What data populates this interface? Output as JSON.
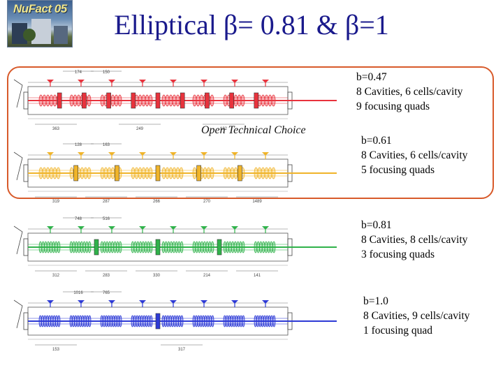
{
  "logo": {
    "text": "NuFact 05"
  },
  "title": "Elliptical β= 0.81 & β=1",
  "open_choice": "Open Technical Choice",
  "colors": {
    "title": "#1a1a8c",
    "frame": "#d85a2a",
    "red": "#e8323c",
    "yellow": "#f0b429",
    "green": "#2fb24a",
    "blue": "#2d3ad6"
  },
  "sections": [
    {
      "beta": "b=0.47",
      "cavities": "8 Cavities, 6 cells/cavity",
      "quads": "9 focusing quads",
      "color": "red",
      "dims_top": [
        "174",
        "150"
      ],
      "dims_bottom": [
        "363",
        "249",
        "182"
      ]
    },
    {
      "beta": "b=0.61",
      "cavities": "8 Cavities, 6 cells/cavity",
      "quads": "5 focusing quads",
      "color": "yellow",
      "dims_top": [
        "128",
        "163"
      ],
      "dims_bottom": [
        "319",
        "287",
        "266",
        "270",
        "1489"
      ]
    },
    {
      "beta": "b=0.81",
      "cavities": "8 Cavities, 8 cells/cavity",
      "quads": "3 focusing quads",
      "color": "green",
      "dims_top": [
        "748",
        "516"
      ],
      "dims_bottom": [
        "312",
        "283",
        "330",
        "214",
        "141"
      ]
    },
    {
      "beta": "b=1.0",
      "cavities": "8 Cavities, 9 cells/cavity",
      "quads": "1 focusing quad",
      "color": "blue",
      "dims_top": [
        "1016",
        "765"
      ],
      "dims_bottom": [
        "153",
        "317"
      ]
    }
  ]
}
